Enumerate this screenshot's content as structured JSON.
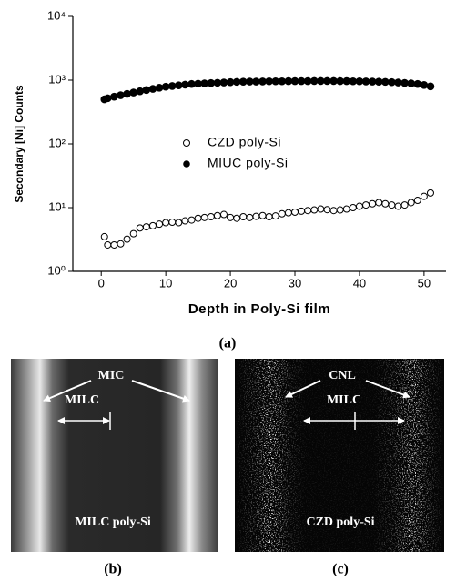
{
  "chart_data": {
    "type": "scatter",
    "x_label": "Depth in Poly-Si film",
    "y_label": "Secondary [Ni] Counts",
    "panel_label": "(a)",
    "log_y": true,
    "xlim": [
      -4.4,
      53.4
    ],
    "xticks": [
      0,
      10,
      20,
      30,
      40,
      50
    ],
    "ylim": [
      1,
      10000
    ],
    "yticks": [
      {
        "value": 1,
        "label": "10⁰"
      },
      {
        "value": 10,
        "label": "10¹"
      },
      {
        "value": 100,
        "label": "10²"
      },
      {
        "value": 1000,
        "label": "10³"
      },
      {
        "value": 10000,
        "label": "10⁴"
      }
    ],
    "x": [
      0.5,
      1,
      2,
      3,
      4,
      5,
      6,
      7,
      8,
      9,
      10,
      11,
      12,
      13,
      14,
      15,
      16,
      17,
      18,
      19,
      20,
      21,
      22,
      23,
      24,
      25,
      26,
      27,
      28,
      29,
      30,
      31,
      32,
      33,
      34,
      35,
      36,
      37,
      38,
      39,
      40,
      41,
      42,
      43,
      44,
      45,
      46,
      47,
      48,
      49,
      50,
      51
    ],
    "series": [
      {
        "name": "CZD poly-Si",
        "color": "#000000",
        "filled": false,
        "values": [
          3.5,
          2.6,
          2.6,
          2.7,
          3.2,
          3.9,
          4.8,
          5.0,
          5.2,
          5.5,
          5.8,
          5.9,
          5.8,
          6.2,
          6.4,
          6.8,
          7.0,
          7.2,
          7.5,
          7.8,
          7.0,
          6.8,
          7.2,
          7.0,
          7.3,
          7.5,
          7.2,
          7.4,
          8.0,
          8.3,
          8.5,
          8.8,
          9.0,
          9.2,
          9.5,
          9.3,
          9.0,
          9.2,
          9.5,
          10,
          10.5,
          11,
          11.5,
          12,
          11.5,
          11,
          10.5,
          11,
          12,
          13,
          15,
          17
        ]
      },
      {
        "name": "MIUC poly-Si",
        "color": "#000000",
        "filled": true,
        "values": [
          500,
          520,
          550,
          580,
          610,
          640,
          670,
          700,
          730,
          760,
          790,
          810,
          830,
          850,
          870,
          880,
          890,
          900,
          910,
          920,
          930,
          940,
          945,
          950,
          950,
          955,
          960,
          960,
          960,
          965,
          965,
          965,
          965,
          970,
          970,
          970,
          970,
          965,
          965,
          960,
          960,
          955,
          950,
          945,
          940,
          930,
          920,
          905,
          890,
          870,
          840,
          800
        ]
      }
    ]
  },
  "micrographs": [
    {
      "label": "(b)",
      "annotations": [
        "MIC",
        "MILC",
        "MILC poly-Si"
      ]
    },
    {
      "label": "(c)",
      "annotations": [
        "CNL",
        "MILC",
        "CZD poly-Si"
      ]
    }
  ]
}
